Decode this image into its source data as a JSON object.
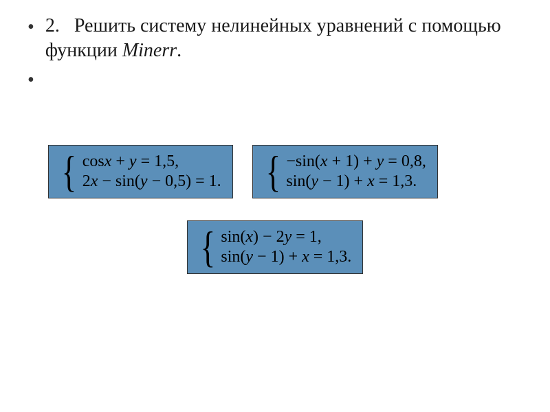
{
  "task": {
    "number": "2.",
    "text_part1": "Решить систему нелинейных уравнений с помощью функции ",
    "text_part2": "Minerr",
    "text_part3": "."
  },
  "equations": {
    "system1": {
      "line1_parts": [
        "cos",
        "x",
        " + ",
        "y",
        " = 1,5,"
      ],
      "line2_parts": [
        "2",
        "x",
        " − sin(",
        "y",
        " − 0,5) = 1."
      ]
    },
    "system2": {
      "line1_parts": [
        "−sin(",
        "x",
        " + 1) + ",
        "y",
        " = 0,8,"
      ],
      "line2_parts": [
        "sin(",
        "y",
        " − 1) + ",
        "x",
        " = 1,3."
      ]
    },
    "system3": {
      "line1_parts": [
        "sin(",
        "x",
        ") − 2",
        "y",
        " = 1,"
      ],
      "line2_parts": [
        "sin(",
        "y",
        " − 1) + ",
        "x",
        " = 1,3."
      ]
    }
  },
  "styling": {
    "box_background": "#5b8fb9",
    "box_border": "#333333",
    "font_size_task": 28,
    "font_size_equation": 24,
    "bullet_color": "#333333",
    "text_color": "#1a1a1a"
  }
}
